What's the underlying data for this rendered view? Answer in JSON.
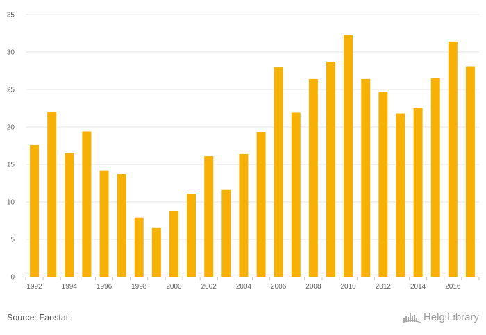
{
  "chart_data": {
    "type": "bar",
    "title": "",
    "xlabel": "",
    "ylabel": "",
    "categories": [
      "1992",
      "1993",
      "1994",
      "1995",
      "1996",
      "1997",
      "1998",
      "1999",
      "2000",
      "2001",
      "2002",
      "2003",
      "2004",
      "2005",
      "2006",
      "2007",
      "2008",
      "2009",
      "2010",
      "2011",
      "2012",
      "2013",
      "2014",
      "2015",
      "2016",
      "2017"
    ],
    "x_tick_labels": [
      "1992",
      "1994",
      "1996",
      "1998",
      "2000",
      "2002",
      "2004",
      "2006",
      "2008",
      "2010",
      "2012",
      "2014",
      "2016"
    ],
    "values": [
      17.6,
      22.0,
      16.5,
      19.4,
      14.2,
      13.7,
      7.9,
      6.5,
      8.8,
      11.1,
      16.1,
      11.6,
      16.4,
      19.3,
      28.0,
      21.9,
      26.4,
      28.7,
      32.3,
      26.4,
      24.7,
      21.8,
      22.5,
      26.5,
      31.4,
      28.1
    ],
    "ylim": [
      0,
      35
    ],
    "y_ticks": [
      0,
      5,
      10,
      15,
      20,
      25,
      30,
      35
    ],
    "grid": true,
    "bar_color": "#F7B106",
    "gridline_color": "#e6e6e6"
  },
  "footer": {
    "source": "Source: Faostat",
    "logo_text": "HelgiLibrary"
  },
  "icons": {
    "logo": "helgi-library-logo-icon"
  }
}
